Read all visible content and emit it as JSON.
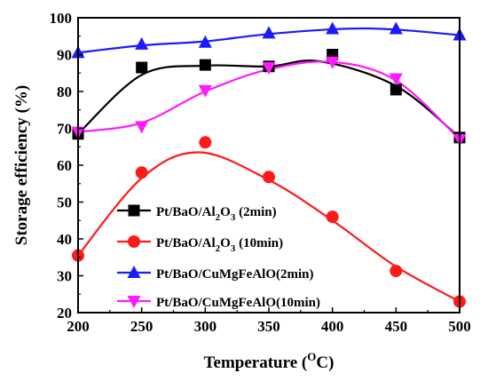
{
  "chart_data": {
    "type": "line",
    "xlabel": "Temperature (",
    "xlabel_unit_sup": "O",
    "xlabel_unit": "C)",
    "ylabel": "Storage efficiency (%)",
    "xlim": [
      200,
      500
    ],
    "ylim": [
      20,
      100
    ],
    "x_ticks": [
      200,
      250,
      300,
      350,
      400,
      450,
      500
    ],
    "y_ticks": [
      20,
      30,
      40,
      50,
      60,
      70,
      80,
      90,
      100
    ],
    "grid": false,
    "legend_placement": "lower-left",
    "x": [
      200,
      250,
      300,
      350,
      400,
      450,
      500
    ],
    "series": [
      {
        "name_parts": [
          "Pt/BaO/Al",
          "2",
          "O",
          "3",
          " (2min)"
        ],
        "marker": "square",
        "color": "#000000",
        "values": [
          68.5,
          86.5,
          87.2,
          86.8,
          90.0,
          80.5,
          67.5
        ],
        "curve": [
          [
            200,
            68.5
          ],
          [
            250,
            84.5
          ],
          [
            300,
            87.0
          ],
          [
            350,
            86.8
          ],
          [
            390,
            88.2
          ],
          [
            450,
            81.5
          ],
          [
            500,
            67.5
          ]
        ]
      },
      {
        "name_parts": [
          "Pt/BaO/Al",
          "2",
          "O",
          "3",
          " (10min)"
        ],
        "marker": "circle",
        "color": "#ff1a1a",
        "values": [
          35.5,
          58.0,
          66.2,
          56.8,
          46.0,
          31.3,
          23.0
        ],
        "curve": [
          [
            200,
            35.5
          ],
          [
            250,
            56.5
          ],
          [
            295,
            63.5
          ],
          [
            350,
            56.0
          ],
          [
            400,
            45.0
          ],
          [
            450,
            32.5
          ],
          [
            500,
            23.0
          ]
        ]
      },
      {
        "name_parts": [
          "Pt/BaO/CuMgFeAlO(2min)"
        ],
        "marker": "triangle-up",
        "color": "#1a1aff",
        "values": [
          90.5,
          92.8,
          93.3,
          95.8,
          97.0,
          97.0,
          95.3
        ],
        "curve": [
          [
            200,
            90.5
          ],
          [
            250,
            92.5
          ],
          [
            300,
            93.6
          ],
          [
            350,
            95.6
          ],
          [
            410,
            97.0
          ],
          [
            450,
            96.8
          ],
          [
            500,
            95.3
          ]
        ]
      },
      {
        "name_parts": [
          "Pt/BaO/CuMgFeAlO(10min)"
        ],
        "marker": "triangle-down",
        "color": "#ff1aff",
        "values": [
          69.0,
          70.5,
          80.3,
          86.5,
          88.0,
          83.5,
          67.0
        ],
        "curve": [
          [
            200,
            69.0
          ],
          [
            250,
            71.5
          ],
          [
            300,
            80.0
          ],
          [
            350,
            86.0
          ],
          [
            400,
            88.0
          ],
          [
            450,
            83.0
          ],
          [
            500,
            67.0
          ]
        ]
      }
    ]
  }
}
